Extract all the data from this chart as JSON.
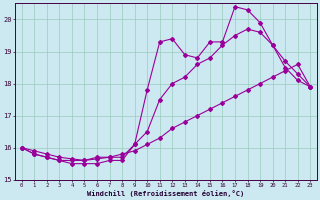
{
  "xlabel": "Windchill (Refroidissement éolien,°C)",
  "bg_color": "#cce8f0",
  "grid_color": "#99ccbb",
  "line_color": "#990099",
  "xlim_min": -0.5,
  "xlim_max": 23.5,
  "ylim_min": 15.0,
  "ylim_max": 20.5,
  "yticks": [
    15,
    16,
    17,
    18,
    19,
    20
  ],
  "xticks": [
    0,
    1,
    2,
    3,
    4,
    5,
    6,
    7,
    8,
    9,
    10,
    11,
    12,
    13,
    14,
    15,
    16,
    17,
    18,
    19,
    20,
    21,
    22,
    23
  ],
  "line1_x": [
    0,
    1,
    2,
    3,
    4,
    5,
    6,
    7,
    8,
    9,
    10,
    11,
    12,
    13,
    14,
    15,
    16,
    17,
    18,
    19,
    20,
    21,
    22,
    23
  ],
  "line1_y": [
    16.0,
    15.8,
    15.7,
    15.6,
    15.6,
    15.6,
    15.7,
    15.7,
    15.7,
    16.1,
    17.8,
    19.3,
    19.4,
    18.9,
    18.8,
    19.3,
    19.3,
    20.4,
    20.3,
    19.9,
    19.2,
    18.5,
    18.1,
    17.9
  ],
  "line2_x": [
    0,
    1,
    2,
    3,
    4,
    5,
    6,
    7,
    8,
    9,
    10,
    11,
    12,
    13,
    14,
    15,
    16,
    17,
    18,
    19,
    20,
    21,
    22,
    23
  ],
  "line2_y": [
    16.0,
    15.8,
    15.7,
    15.6,
    15.5,
    15.5,
    15.5,
    15.6,
    15.6,
    16.1,
    16.5,
    17.5,
    18.0,
    18.2,
    18.6,
    18.8,
    19.2,
    19.5,
    19.7,
    19.6,
    19.2,
    18.7,
    18.3,
    17.9
  ],
  "line3_x": [
    0,
    1,
    2,
    3,
    4,
    5,
    6,
    7,
    8,
    9,
    10,
    11,
    12,
    13,
    14,
    15,
    16,
    17,
    18,
    19,
    20,
    21,
    22,
    23
  ],
  "line3_y": [
    16.0,
    15.9,
    15.8,
    15.7,
    15.65,
    15.6,
    15.65,
    15.7,
    15.8,
    15.9,
    16.1,
    16.3,
    16.6,
    16.8,
    17.0,
    17.2,
    17.4,
    17.6,
    17.8,
    18.0,
    18.2,
    18.4,
    18.6,
    17.9
  ]
}
